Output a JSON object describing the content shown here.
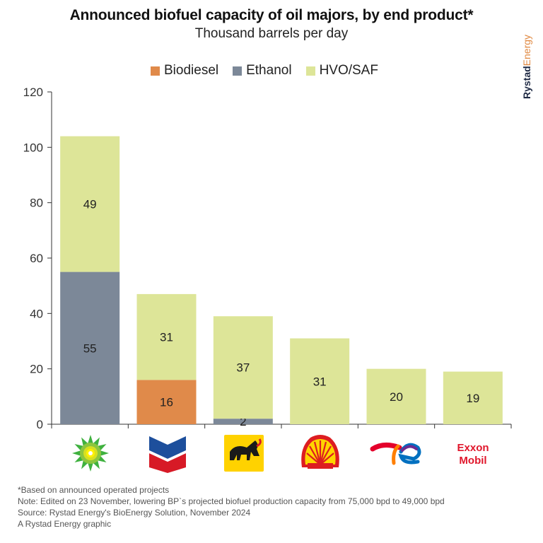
{
  "header": {
    "title": "Announced biofuel capacity of oil majors, by end product*",
    "subtitle": "Thousand barrels per day"
  },
  "brand": {
    "name_bold": "Rystad",
    "name_light": "Energy",
    "color_bold": "#1f2a44",
    "color_light": "#e08840"
  },
  "legend": [
    {
      "label": "Biodiesel",
      "color": "#e08a4a"
    },
    {
      "label": "Ethanol",
      "color": "#7c8898"
    },
    {
      "label": "HVO/SAF",
      "color": "#dde598"
    }
  ],
  "chart_data": {
    "type": "bar",
    "stacked": true,
    "categories": [
      "bp-logo",
      "chevron-logo",
      "eni-logo",
      "shell-logo",
      "totalenergies-logo",
      "exxonmobil-logo"
    ],
    "series": [
      {
        "name": "Biodiesel",
        "color": "#e08a4a",
        "values": [
          0,
          16,
          0,
          0,
          0,
          0
        ]
      },
      {
        "name": "Ethanol",
        "color": "#7c8898",
        "values": [
          55,
          0,
          2,
          0,
          0,
          0
        ]
      },
      {
        "name": "HVO/SAF",
        "color": "#dde598",
        "values": [
          49,
          31,
          37,
          31,
          20,
          19
        ]
      }
    ],
    "ylim": [
      0,
      120
    ],
    "yticks": [
      0,
      20,
      40,
      60,
      80,
      100,
      120
    ],
    "grid": false,
    "legend_position": "top-center"
  },
  "logos": {
    "exxon_text_top": "Exxon",
    "exxon_text_bottom": "Mobil"
  },
  "footnotes": [
    "*Based on announced operated projects",
    "Note: Edited on 23 November, lowering BP`s projected biofuel production capacity from 75,000 bpd to 49,000 bpd",
    "Source: Rystad Energy's BioEnergy Solution, November 2024",
    "A Rystad Energy graphic"
  ]
}
